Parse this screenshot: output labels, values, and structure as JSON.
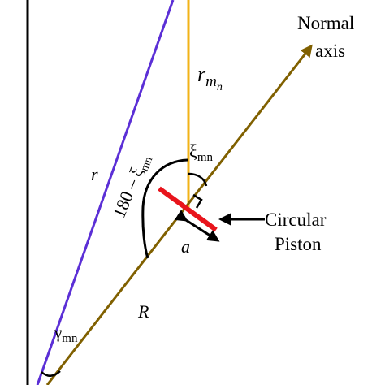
{
  "labels": {
    "normal_axis_line1": "Normal",
    "normal_axis_line2": "axis",
    "r_mn_main": "r",
    "r_mn_sub": "m",
    "r_mn_subsub": "n",
    "r": "r",
    "R": "R",
    "angle_180_xi": "180 – ξ",
    "angle_180_xi_sub": "mn",
    "xi_mn": "ξ",
    "xi_mn_sub": "mn",
    "gamma_mn": "γ",
    "gamma_mn_sub": "mn",
    "piston_line1": "Circular",
    "piston_line2": "Piston",
    "a": "a"
  },
  "colors": {
    "normal_axis": "#806000",
    "r_line": "#5b2fd6",
    "r_mn_line": "#f2b318",
    "piston": "#e8141c",
    "frame": "#000000"
  }
}
